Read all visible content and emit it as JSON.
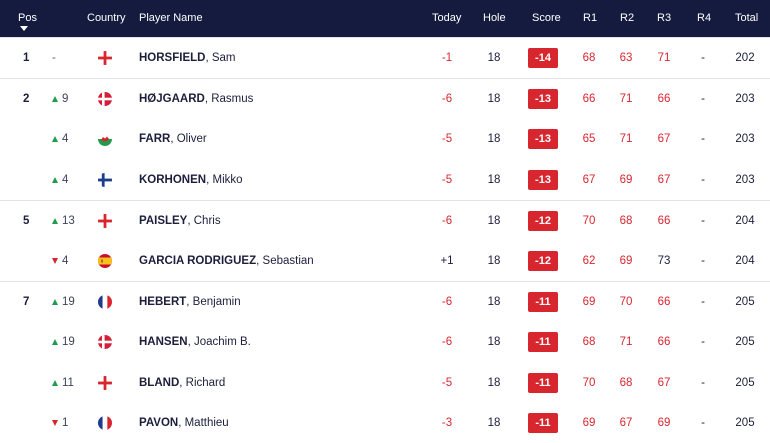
{
  "header": {
    "pos": "Pos",
    "country": "Country",
    "player_name": "Player Name",
    "today": "Today",
    "hole": "Hole",
    "score": "Score",
    "r1": "R1",
    "r2": "R2",
    "r3": "R3",
    "r4": "R4",
    "total": "Total"
  },
  "colors": {
    "header_bg": "#141b3f",
    "score_badge": "#d8262f",
    "under_par_text": "#d8262f",
    "move_up": "#1f9d4c",
    "move_down": "#d8262f",
    "total_column_bg": "#eef0f4"
  },
  "rows": [
    {
      "pos": "1",
      "move": "-",
      "dir": "none",
      "country": "england",
      "last": "HORSFIELD",
      "first": "Sam",
      "today": "-1",
      "hole": "18",
      "score": "-14",
      "r1": "68",
      "r2": "63",
      "r3": "71",
      "r4": "-",
      "total": "202"
    },
    {
      "pos": "2",
      "move": "9",
      "dir": "up",
      "country": "denmark",
      "last": "HØJGAARD",
      "first": "Rasmus",
      "today": "-6",
      "hole": "18",
      "score": "-13",
      "r1": "66",
      "r2": "71",
      "r3": "66",
      "r4": "-",
      "total": "203"
    },
    {
      "pos": "",
      "move": "4",
      "dir": "up",
      "country": "wales",
      "last": "FARR",
      "first": "Oliver",
      "today": "-5",
      "hole": "18",
      "score": "-13",
      "r1": "65",
      "r2": "71",
      "r3": "67",
      "r4": "-",
      "total": "203"
    },
    {
      "pos": "",
      "move": "4",
      "dir": "up",
      "country": "finland",
      "last": "KORHONEN",
      "first": "Mikko",
      "today": "-5",
      "hole": "18",
      "score": "-13",
      "r1": "67",
      "r2": "69",
      "r3": "67",
      "r4": "-",
      "total": "203"
    },
    {
      "pos": "5",
      "move": "13",
      "dir": "up",
      "country": "england",
      "last": "PAISLEY",
      "first": "Chris",
      "today": "-6",
      "hole": "18",
      "score": "-12",
      "r1": "70",
      "r2": "68",
      "r3": "66",
      "r4": "-",
      "total": "204"
    },
    {
      "pos": "",
      "move": "4",
      "dir": "down",
      "country": "spain",
      "last": "GARCIA RODRIGUEZ",
      "first": "Sebastian",
      "today": "+1",
      "hole": "18",
      "score": "-12",
      "r1": "62",
      "r2": "69",
      "r3": "73",
      "r4": "-",
      "total": "204"
    },
    {
      "pos": "7",
      "move": "19",
      "dir": "up",
      "country": "france",
      "last": "HEBERT",
      "first": "Benjamin",
      "today": "-6",
      "hole": "18",
      "score": "-11",
      "r1": "69",
      "r2": "70",
      "r3": "66",
      "r4": "-",
      "total": "205"
    },
    {
      "pos": "",
      "move": "19",
      "dir": "up",
      "country": "denmark",
      "last": "HANSEN",
      "first": "Joachim B.",
      "today": "-6",
      "hole": "18",
      "score": "-11",
      "r1": "68",
      "r2": "71",
      "r3": "66",
      "r4": "-",
      "total": "205"
    },
    {
      "pos": "",
      "move": "11",
      "dir": "up",
      "country": "england",
      "last": "BLAND",
      "first": "Richard",
      "today": "-5",
      "hole": "18",
      "score": "-11",
      "r1": "70",
      "r2": "68",
      "r3": "67",
      "r4": "-",
      "total": "205"
    },
    {
      "pos": "",
      "move": "1",
      "dir": "down",
      "country": "france",
      "last": "PAVON",
      "first": "Matthieu",
      "today": "-3",
      "hole": "18",
      "score": "-11",
      "r1": "69",
      "r2": "67",
      "r3": "69",
      "r4": "-",
      "total": "205"
    }
  ]
}
